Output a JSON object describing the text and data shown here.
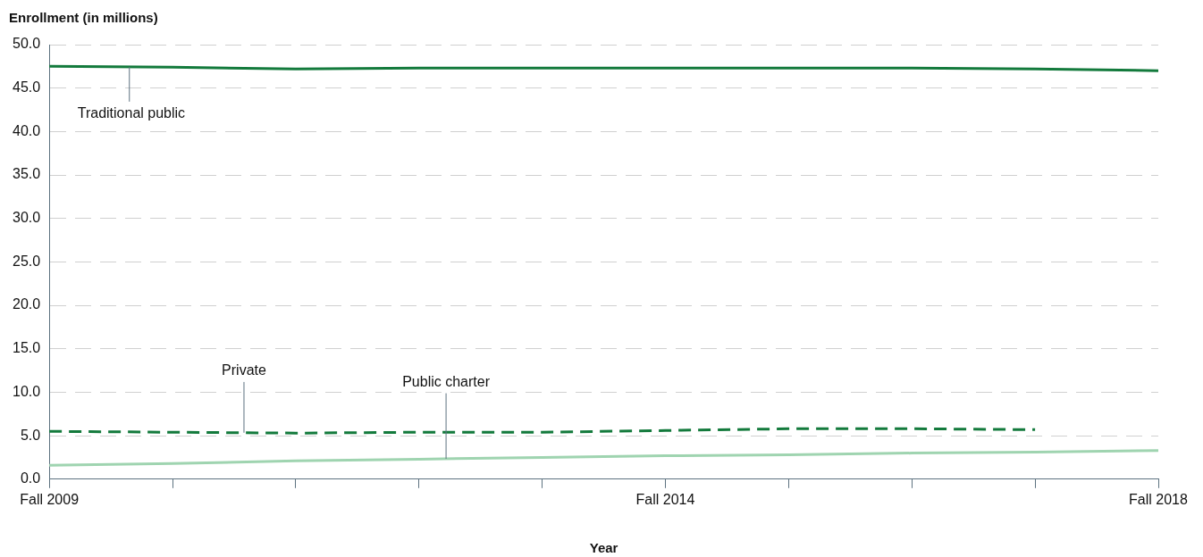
{
  "chart_data": {
    "type": "line",
    "ylabel": "Enrollment (in millions)",
    "xlabel": "Year",
    "categories": [
      "Fall 2009",
      null,
      null,
      null,
      null,
      "Fall 2014",
      null,
      null,
      null,
      "Fall 2018"
    ],
    "series": [
      {
        "name": "Traditional public",
        "color": "#137a3c",
        "line_style": "solid",
        "values": [
          47.5,
          47.4,
          47.2,
          47.3,
          47.3,
          47.3,
          47.3,
          47.3,
          47.2,
          47.0
        ]
      },
      {
        "name": "Private",
        "color": "#137a3c",
        "line_style": "dashed",
        "values": [
          5.5,
          5.4,
          5.3,
          5.4,
          5.4,
          5.6,
          5.8,
          5.8,
          5.7,
          null
        ]
      },
      {
        "name": "Public charter",
        "color": "#9fd4b0",
        "line_style": "solid",
        "values": [
          1.6,
          1.8,
          2.1,
          2.3,
          2.5,
          2.7,
          2.8,
          3.0,
          3.1,
          3.3
        ]
      }
    ],
    "ylim": [
      0,
      50
    ],
    "yticks": [
      {
        "value": 0,
        "label": "0.0"
      },
      {
        "value": 5,
        "label": "5.0"
      },
      {
        "value": 10,
        "label": "10.0"
      },
      {
        "value": 15,
        "label": "15.0"
      },
      {
        "value": 20,
        "label": "20.0"
      },
      {
        "value": 25,
        "label": "25.0"
      },
      {
        "value": 30,
        "label": "30.0"
      },
      {
        "value": 35,
        "label": "35.0"
      },
      {
        "value": 40,
        "label": "40.0"
      },
      {
        "value": 45,
        "label": "45.0"
      },
      {
        "value": 50,
        "label": "50.0"
      }
    ],
    "grid": "y",
    "legend": false,
    "marker": "none"
  }
}
